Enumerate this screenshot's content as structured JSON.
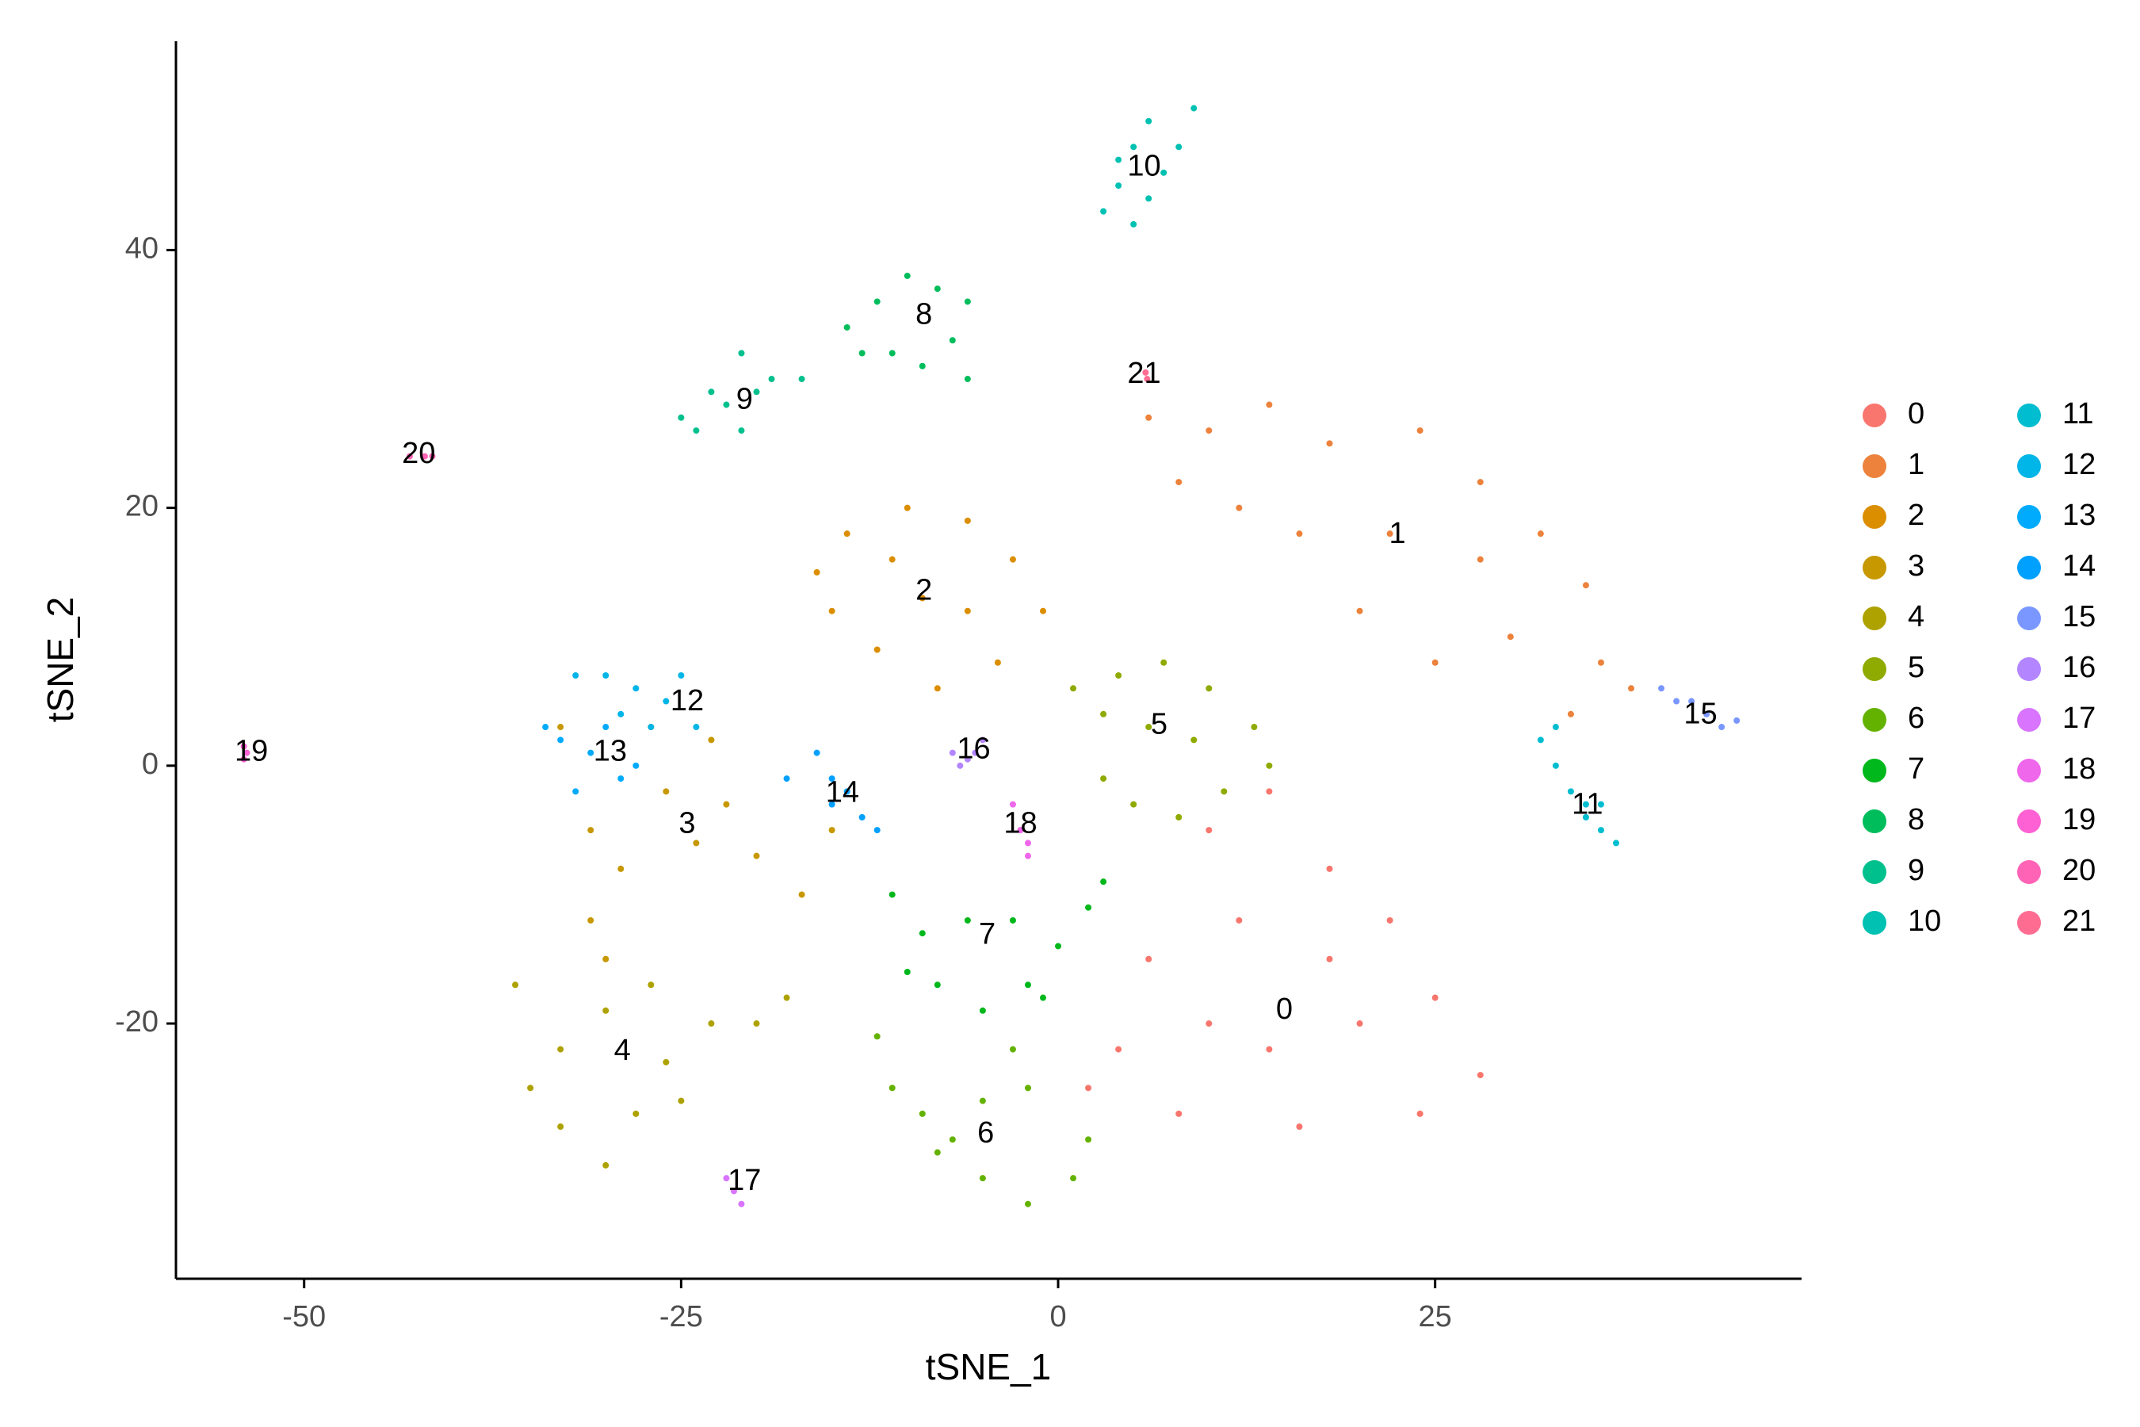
{
  "chart_data": {
    "type": "scatter",
    "x_label": "tSNE_1",
    "y_label": "tSNE_2",
    "xlim": [
      -58.5,
      49.3
    ],
    "ylim": [
      -39.8,
      56.2
    ],
    "xticks": [
      -50,
      -25,
      0,
      25
    ],
    "yticks": [
      -20,
      0,
      20,
      40
    ],
    "legend": {
      "position": "right",
      "columns": 2
    },
    "series": [
      {
        "name": "0",
        "color": "#F8766D",
        "x": [
          10,
          14,
          18,
          22,
          12,
          6,
          4,
          8,
          16,
          24,
          28,
          20,
          14,
          10,
          18,
          25,
          2
        ],
        "y": [
          -5,
          -2,
          -8,
          -12,
          -12,
          -15,
          -22,
          -27,
          -28,
          -27,
          -24,
          -20,
          -22,
          -20,
          -15,
          -18,
          -25
        ],
        "label_x": 15,
        "label_y": -19
      },
      {
        "name": "1",
        "color": "#EC823C",
        "x": [
          6,
          10,
          14,
          18,
          24,
          28,
          32,
          35,
          36,
          38,
          30,
          25,
          20,
          16,
          12,
          8,
          22,
          28,
          34
        ],
        "y": [
          27,
          26,
          28,
          25,
          26,
          22,
          18,
          14,
          8,
          6,
          10,
          8,
          12,
          18,
          20,
          22,
          18,
          16,
          4
        ],
        "label_x": 22.5,
        "label_y": 17.9
      },
      {
        "name": "2",
        "color": "#DB8E00",
        "x": [
          -16,
          -14,
          -10,
          -6,
          -3,
          -1,
          -4,
          -8,
          -12,
          -15,
          -9,
          -6,
          -11
        ],
        "y": [
          15,
          18,
          20,
          19,
          16,
          12,
          8,
          6,
          9,
          12,
          13,
          12,
          16
        ],
        "label_x": -8.9,
        "label_y": 13.5
      },
      {
        "name": "3",
        "color": "#C79800",
        "x": [
          -33,
          -31,
          -31,
          -29,
          -26,
          -24,
          -22,
          -20,
          -17,
          -15,
          -27,
          -23,
          -30
        ],
        "y": [
          3,
          -5,
          -12,
          -8,
          -2,
          -6,
          -3,
          -7,
          -10,
          -5,
          3,
          2,
          -15
        ],
        "label_x": -24.6,
        "label_y": -4.6
      },
      {
        "name": "4",
        "color": "#AEA200",
        "x": [
          -35,
          -33,
          -30,
          -28,
          -26,
          -23,
          -20,
          -18,
          -30,
          -33,
          -27,
          -36,
          -25
        ],
        "y": [
          -25,
          -28,
          -31,
          -27,
          -23,
          -20,
          -20,
          -18,
          -19,
          -22,
          -17,
          -17,
          -26
        ],
        "label_x": -28.9,
        "label_y": -22.2
      },
      {
        "name": "5",
        "color": "#8FAA00",
        "x": [
          1,
          4,
          7,
          10,
          13,
          14,
          11,
          8,
          5,
          3,
          6,
          9,
          3
        ],
        "y": [
          6,
          7,
          8,
          6,
          3,
          0,
          -2,
          -4,
          -3,
          -1,
          3,
          2,
          4
        ],
        "label_x": 6.7,
        "label_y": 3.1
      },
      {
        "name": "6",
        "color": "#64B200",
        "x": [
          -12,
          -11,
          -9,
          -7,
          -5,
          -2,
          1,
          2,
          -2,
          -5,
          -3,
          -8
        ],
        "y": [
          -21,
          -25,
          -27,
          -29,
          -32,
          -34,
          -32,
          -29,
          -25,
          -26,
          -22,
          -30
        ],
        "label_x": -4.8,
        "label_y": -28.6
      },
      {
        "name": "7",
        "color": "#00B81B",
        "x": [
          -11,
          -9,
          -8,
          -5,
          -2,
          0,
          2,
          3,
          -3,
          -6,
          -1,
          -10
        ],
        "y": [
          -10,
          -13,
          -17,
          -19,
          -17,
          -14,
          -11,
          -9,
          -12,
          -12,
          -18,
          -16
        ],
        "label_x": -4.7,
        "label_y": -13.2
      },
      {
        "name": "8",
        "color": "#00BD5C",
        "x": [
          -14,
          -12,
          -10,
          -8,
          -6,
          -7,
          -9,
          -11,
          -13,
          -6
        ],
        "y": [
          34,
          36,
          38,
          37,
          36,
          33,
          31,
          32,
          32,
          30
        ],
        "label_x": -8.9,
        "label_y": 34.9
      },
      {
        "name": "9",
        "color": "#00C08D",
        "x": [
          -25,
          -24,
          -22,
          -20,
          -19,
          -17,
          -21,
          -23,
          -21
        ],
        "y": [
          27,
          26,
          28,
          29,
          30,
          30,
          26,
          29,
          32
        ],
        "label_x": -20.8,
        "label_y": 28.3
      },
      {
        "name": "10",
        "color": "#00C1B2",
        "x": [
          3,
          4,
          5,
          6,
          7,
          8,
          9,
          6,
          5,
          4
        ],
        "y": [
          43,
          45,
          42,
          44,
          46,
          48,
          51,
          50,
          48,
          47
        ],
        "label_x": 5.7,
        "label_y": 46.4
      },
      {
        "name": "11",
        "color": "#00BDD0",
        "x": [
          32,
          33,
          34,
          35,
          36,
          37,
          33,
          35,
          36
        ],
        "y": [
          2,
          0,
          -2,
          -4,
          -5,
          -6,
          3,
          -3,
          -3
        ],
        "label_x": 35.1,
        "label_y": -3.1
      },
      {
        "name": "12",
        "color": "#00B5E7",
        "x": [
          -32,
          -30,
          -28,
          -26,
          -24,
          -27,
          -29,
          -25
        ],
        "y": [
          7,
          7,
          6,
          5,
          3,
          3,
          4,
          7
        ],
        "label_x": -24.6,
        "label_y": 4.9
      },
      {
        "name": "13",
        "color": "#00ABFD",
        "x": [
          -34,
          -33,
          -31,
          -29,
          -28,
          -30,
          -32
        ],
        "y": [
          3,
          2,
          1,
          -1,
          0,
          3,
          -2
        ],
        "label_x": -29.7,
        "label_y": 1.0
      },
      {
        "name": "14",
        "color": "#00A0FF",
        "x": [
          -18,
          -16,
          -15,
          -14,
          -13,
          -12,
          -15
        ],
        "y": [
          -1,
          1,
          -1,
          -2,
          -4,
          -5,
          -3
        ],
        "label_x": -14.3,
        "label_y": -2.2
      },
      {
        "name": "15",
        "color": "#7997FF",
        "x": [
          40,
          41,
          42,
          43,
          44,
          45
        ],
        "y": [
          6,
          5,
          5,
          4,
          3,
          3.5
        ],
        "label_x": 42.6,
        "label_y": 3.9
      },
      {
        "name": "16",
        "color": "#B385FF",
        "x": [
          -7,
          -6,
          -5.5,
          -5,
          -6.5
        ],
        "y": [
          1,
          0.5,
          1,
          2,
          0
        ],
        "label_x": -5.6,
        "label_y": 1.2
      },
      {
        "name": "17",
        "color": "#D874FD",
        "x": [
          -22,
          -21.5,
          -21
        ],
        "y": [
          -32,
          -33,
          -34
        ],
        "label_x": -20.8,
        "label_y": -32.3
      },
      {
        "name": "18",
        "color": "#EF67EB",
        "x": [
          -3,
          -2.5,
          -2,
          -2
        ],
        "y": [
          -3,
          -5,
          -6,
          -7
        ],
        "label_x": -2.5,
        "label_y": -4.6
      },
      {
        "name": "19",
        "color": "#FD61D3",
        "x": [
          -54,
          -54,
          -53.8
        ],
        "y": [
          1.5,
          0.5,
          1
        ],
        "label_x": -53.5,
        "label_y": 1.0
      },
      {
        "name": "20",
        "color": "#FF63B6",
        "x": [
          -43,
          -42,
          -41.5
        ],
        "y": [
          24,
          24,
          24
        ],
        "label_x": -42.4,
        "label_y": 24.1
      },
      {
        "name": "21",
        "color": "#FF6C92",
        "x": [
          5.8,
          5.9
        ],
        "y": [
          30.5,
          30
        ],
        "label_x": 5.7,
        "label_y": 30.3
      }
    ]
  }
}
